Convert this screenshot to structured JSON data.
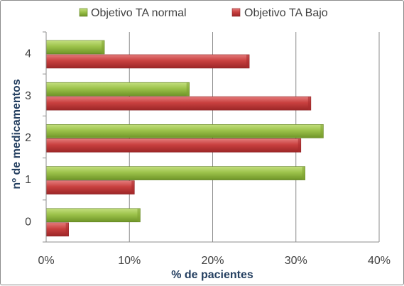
{
  "chart_data": {
    "type": "bar",
    "orientation": "horizontal",
    "categories": [
      "0",
      "1",
      "2",
      "3",
      "4"
    ],
    "series": [
      {
        "name": "Objetivo TA normal",
        "color": "#8db43a",
        "values": [
          11.3,
          31.1,
          33.3,
          17.2,
          7.0
        ]
      },
      {
        "name": "Objetivo TA Bajo",
        "color": "#c0393b",
        "values": [
          2.7,
          10.6,
          30.6,
          31.8,
          24.4
        ]
      }
    ],
    "xlabel": "% de pacientes",
    "ylabel": "nº de medicamentos",
    "xlim": [
      0,
      40
    ],
    "xticks": [
      "0%",
      "10%",
      "20%",
      "30%",
      "40%"
    ],
    "grid": true,
    "legend_position": "top"
  }
}
